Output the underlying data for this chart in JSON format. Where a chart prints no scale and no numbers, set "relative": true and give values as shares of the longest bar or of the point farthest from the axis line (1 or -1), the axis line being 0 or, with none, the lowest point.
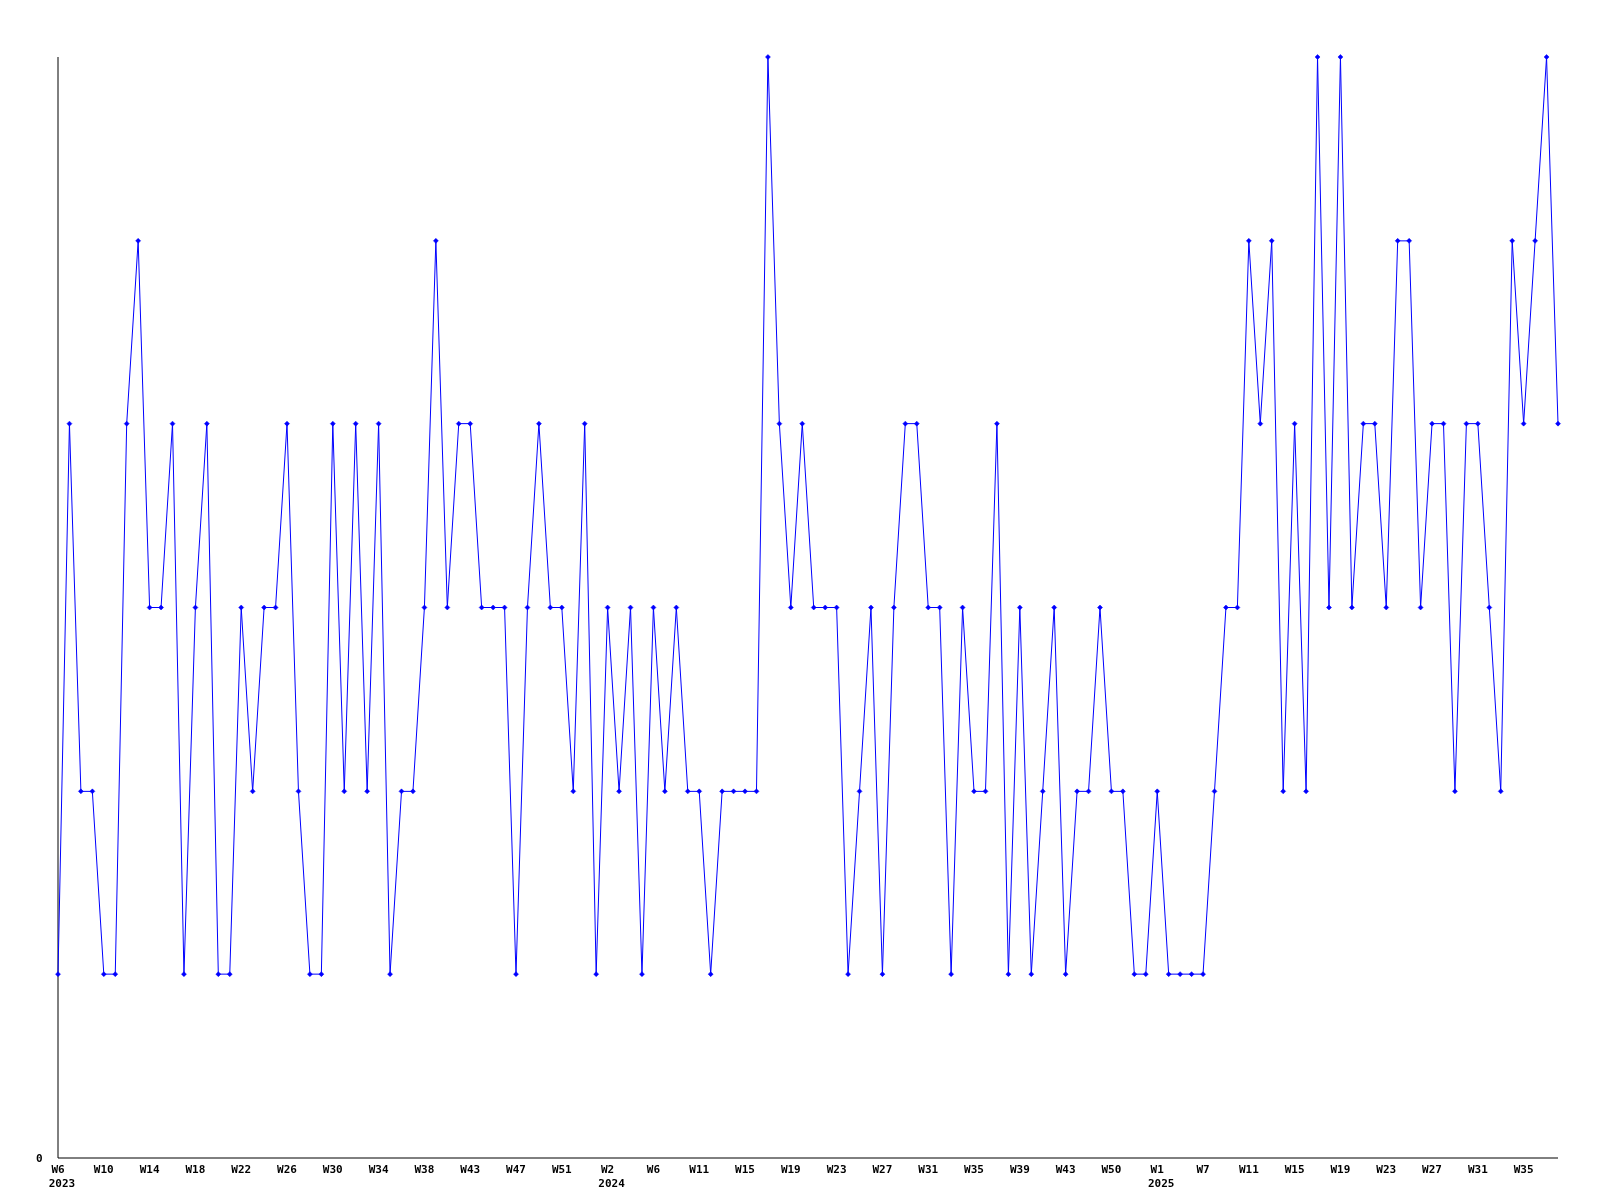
{
  "chart_data": {
    "type": "line",
    "relative": true,
    "marker": "diamond",
    "line_style": "solid",
    "grid": false,
    "annotations": [
      "0"
    ],
    "categories": [
      "W6\n2023",
      null,
      null,
      null,
      "W10",
      null,
      null,
      null,
      "W14",
      null,
      null,
      null,
      "W18",
      null,
      null,
      null,
      "W22",
      null,
      null,
      null,
      "W26",
      null,
      null,
      null,
      "W30",
      null,
      null,
      null,
      "W34",
      null,
      null,
      null,
      "W38",
      null,
      null,
      null,
      "W43",
      null,
      null,
      null,
      "W47",
      null,
      null,
      null,
      "W51",
      null,
      null,
      null,
      "W2\n2024",
      null,
      null,
      null,
      "W6",
      null,
      null,
      null,
      "W11",
      null,
      null,
      null,
      "W15",
      null,
      null,
      null,
      "W19",
      null,
      null,
      null,
      "W23",
      null,
      null,
      null,
      "W27",
      null,
      null,
      null,
      "W31",
      null,
      null,
      null,
      "W35",
      null,
      null,
      null,
      "W39",
      null,
      null,
      null,
      "W43",
      null,
      null,
      null,
      "W50",
      null,
      null,
      null,
      "W1\n2025",
      null,
      null,
      null,
      "W7",
      null,
      null,
      null,
      "W11",
      null,
      null,
      null,
      "W15",
      null,
      null,
      null,
      "W19",
      null,
      null,
      null,
      "W23",
      null,
      null,
      null,
      "W27",
      null,
      null,
      null,
      "W31",
      null,
      null,
      null,
      "W35",
      null,
      null,
      null
    ],
    "series": [
      {
        "color": "#0000ff",
        "values": [
          0.167,
          0.667,
          0.333,
          0.333,
          0.167,
          0.167,
          0.667,
          0.833,
          0.5,
          0.5,
          0.667,
          0.167,
          0.5,
          0.667,
          0.167,
          0.167,
          0.5,
          0.333,
          0.5,
          0.5,
          0.667,
          0.333,
          0.167,
          0.167,
          0.667,
          0.333,
          0.667,
          0.333,
          0.667,
          0.167,
          0.333,
          0.333,
          0.5,
          0.833,
          0.5,
          0.667,
          0.667,
          0.5,
          0.5,
          0.5,
          0.167,
          0.5,
          0.667,
          0.5,
          0.5,
          0.333,
          0.667,
          0.167,
          0.5,
          0.333,
          0.5,
          0.167,
          0.5,
          0.333,
          0.5,
          0.333,
          0.333,
          0.167,
          0.333,
          0.333,
          0.333,
          0.333,
          1,
          0.667,
          0.5,
          0.667,
          0.5,
          0.5,
          0.5,
          0.167,
          0.333,
          0.5,
          0.167,
          0.5,
          0.667,
          0.667,
          0.5,
          0.5,
          0.167,
          0.5,
          0.333,
          0.333,
          0.667,
          0.167,
          0.5,
          0.167,
          0.333,
          0.5,
          0.167,
          0.333,
          0.333,
          0.5,
          0.333,
          0.333,
          0.167,
          0.167,
          0.333,
          0.167,
          0.167,
          0.167,
          0.167,
          0.333,
          0.5,
          0.5,
          0.833,
          0.667,
          0.833,
          0.333,
          0.667,
          0.333,
          1,
          0.5,
          1,
          0.5,
          0.667,
          0.667,
          0.5,
          0.833,
          0.833,
          0.5,
          0.667,
          0.667,
          0.333,
          0.667,
          0.667,
          0.5,
          0.333,
          0.833,
          0.667,
          0.833,
          1,
          0.667
        ]
      }
    ]
  }
}
